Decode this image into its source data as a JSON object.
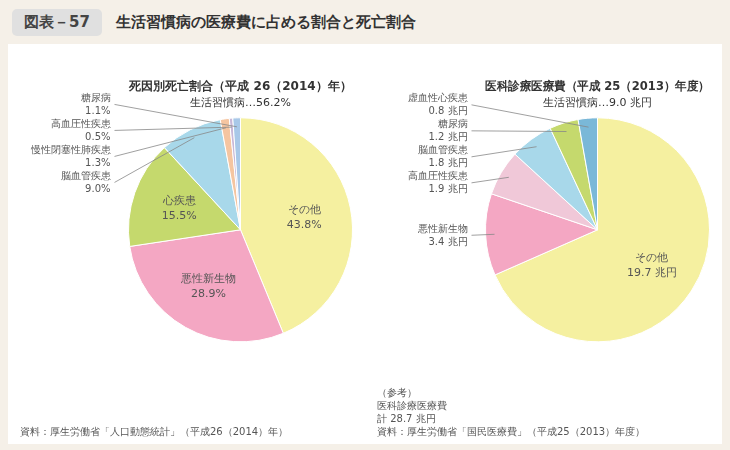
{
  "title": "図表－57　生活習慣病の医療費に占める割合と死亡割合",
  "chart_data": [
    {
      "type": "pie",
      "title": "死因別死亡割合（平成 26（2014）年）",
      "subtitle": "生活習慣病…56.2%",
      "categories": [
        "その他",
        "悪性新生物",
        "心疾患",
        "脳血管疾患",
        "慢性閉塞性肺疾患",
        "高血圧性疾患",
        "糖尿病"
      ],
      "values": [
        43.8,
        28.9,
        15.5,
        9.0,
        1.3,
        0.5,
        1.1
      ],
      "value_labels": [
        "43.8%",
        "28.9%",
        "15.5%",
        "9.0%",
        "1.3%",
        "0.5%",
        "1.1%"
      ],
      "colors": [
        "#f5f0a0",
        "#f4a7c3",
        "#c5d96d",
        "#a8d8ea",
        "#f5c5a0",
        "#c8b8d8",
        "#a8c8e8"
      ],
      "data_labels": true,
      "annotations": [
        "資料：厚生労働省「人口動態統計」（平成26（2014）年）"
      ]
    },
    {
      "type": "pie",
      "title": "医科診療医療費（平成 25（2013）年度）",
      "subtitle": "生活習慣病…9.0 兆円",
      "categories": [
        "その他",
        "悪性新生物",
        "高血圧性疾患",
        "脳血管疾患",
        "糖尿病",
        "虚血性心疾患"
      ],
      "values": [
        19.7,
        3.4,
        1.9,
        1.8,
        1.2,
        0.8
      ],
      "value_labels": [
        "19.7 兆円",
        "3.4 兆円",
        "1.9 兆円",
        "1.8 兆円",
        "1.2 兆円",
        "0.8 兆円"
      ],
      "colors": [
        "#f5f0a0",
        "#f4a7c3",
        "#f0c8d8",
        "#a8d8ea",
        "#c5d96d",
        "#7ab8d8"
      ],
      "data_labels": true,
      "annotations": [
        "（参考）",
        "医科診療医療費",
        "計 28.7 兆円",
        "資料：厚生労働省「国民医療費」（平成25（2013）年度）"
      ]
    }
  ]
}
